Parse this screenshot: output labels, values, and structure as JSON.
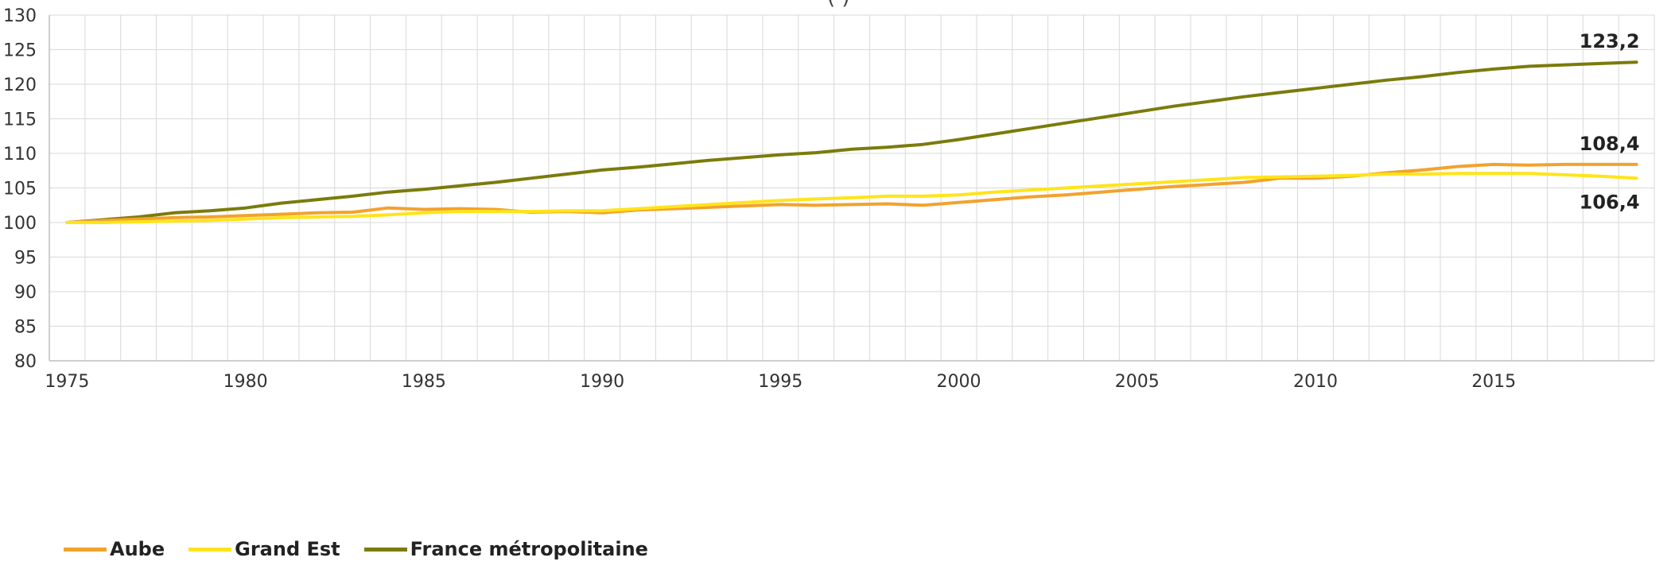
{
  "title_fragment": "(                          )",
  "colors": {
    "aube": "#F2A22E",
    "grand_est": "#FFE41A",
    "france": "#7B7B0C",
    "grid": "#D9D9D9",
    "axis": "#BFBFBF"
  },
  "chart_data": {
    "type": "line",
    "x": [
      1975,
      1976,
      1977,
      1978,
      1979,
      1980,
      1981,
      1982,
      1983,
      1984,
      1985,
      1986,
      1987,
      1988,
      1989,
      1990,
      1991,
      1992,
      1993,
      1994,
      1995,
      1996,
      1997,
      1998,
      1999,
      2000,
      2001,
      2002,
      2003,
      2004,
      2005,
      2006,
      2007,
      2008,
      2009,
      2010,
      2011,
      2012,
      2013,
      2014,
      2015,
      2016,
      2017,
      2018,
      2019
    ],
    "series": [
      {
        "name": "Aube",
        "color": "#F2A22E",
        "values": [
          100,
          100.3,
          100.5,
          100.7,
          100.8,
          101.0,
          101.2,
          101.4,
          101.5,
          102.1,
          101.9,
          102.0,
          101.9,
          101.5,
          101.6,
          101.4,
          101.8,
          102.0,
          102.2,
          102.4,
          102.6,
          102.5,
          102.6,
          102.7,
          102.5,
          102.9,
          103.3,
          103.7,
          104.0,
          104.4,
          104.8,
          105.2,
          105.5,
          105.8,
          106.4,
          106.4,
          106.7,
          107.2,
          107.6,
          108.1,
          108.4,
          108.3,
          108.4,
          108.4,
          108.4
        ]
      },
      {
        "name": "Grand Est",
        "color": "#FFE41A",
        "values": [
          100,
          100.0,
          100.1,
          100.2,
          100.3,
          100.5,
          100.7,
          100.8,
          100.9,
          101.1,
          101.4,
          101.6,
          101.6,
          101.6,
          101.7,
          101.7,
          102.0,
          102.3,
          102.6,
          102.9,
          103.2,
          103.4,
          103.6,
          103.8,
          103.8,
          104.0,
          104.4,
          104.7,
          105.0,
          105.3,
          105.6,
          105.9,
          106.2,
          106.5,
          106.6,
          106.7,
          106.8,
          107.0,
          107.0,
          107.1,
          107.1,
          107.1,
          106.9,
          106.7,
          106.4
        ]
      },
      {
        "name": "France métropolitaine",
        "color": "#7B7B0C",
        "values": [
          100,
          100.4,
          100.8,
          101.4,
          101.7,
          102.1,
          102.8,
          103.3,
          103.8,
          104.4,
          104.8,
          105.3,
          105.8,
          106.4,
          107.0,
          107.6,
          108.0,
          108.5,
          109.0,
          109.4,
          109.8,
          110.1,
          110.6,
          110.9,
          111.3,
          112.0,
          112.8,
          113.6,
          114.4,
          115.2,
          116.0,
          116.8,
          117.5,
          118.2,
          118.8,
          119.4,
          120.0,
          120.6,
          121.1,
          121.7,
          122.2,
          122.6,
          122.8,
          123.0,
          123.2
        ]
      }
    ],
    "ylim": [
      80,
      130
    ],
    "y_ticks": [
      80,
      85,
      90,
      95,
      100,
      105,
      110,
      115,
      120,
      125,
      130
    ],
    "y_tick_labels": [
      "80",
      "85",
      "90",
      "95",
      "100",
      "105",
      "110",
      "115",
      "120",
      "125",
      "130"
    ],
    "x_ticks": [
      1975,
      1980,
      1985,
      1990,
      1995,
      2000,
      2005,
      2010,
      2015
    ],
    "x_tick_labels": [
      "1975",
      "1980",
      "1985",
      "1990",
      "1995",
      "2000",
      "2005",
      "2010",
      "2015"
    ],
    "xlim": [
      1974.5,
      2019.5
    ],
    "grid": true,
    "legend_position": "bottom-left",
    "end_labels": [
      {
        "series": "France métropolitaine",
        "text": "123,2"
      },
      {
        "series": "Aube",
        "text": "108,4"
      },
      {
        "series": "Grand Est",
        "text": "106,4"
      }
    ]
  }
}
